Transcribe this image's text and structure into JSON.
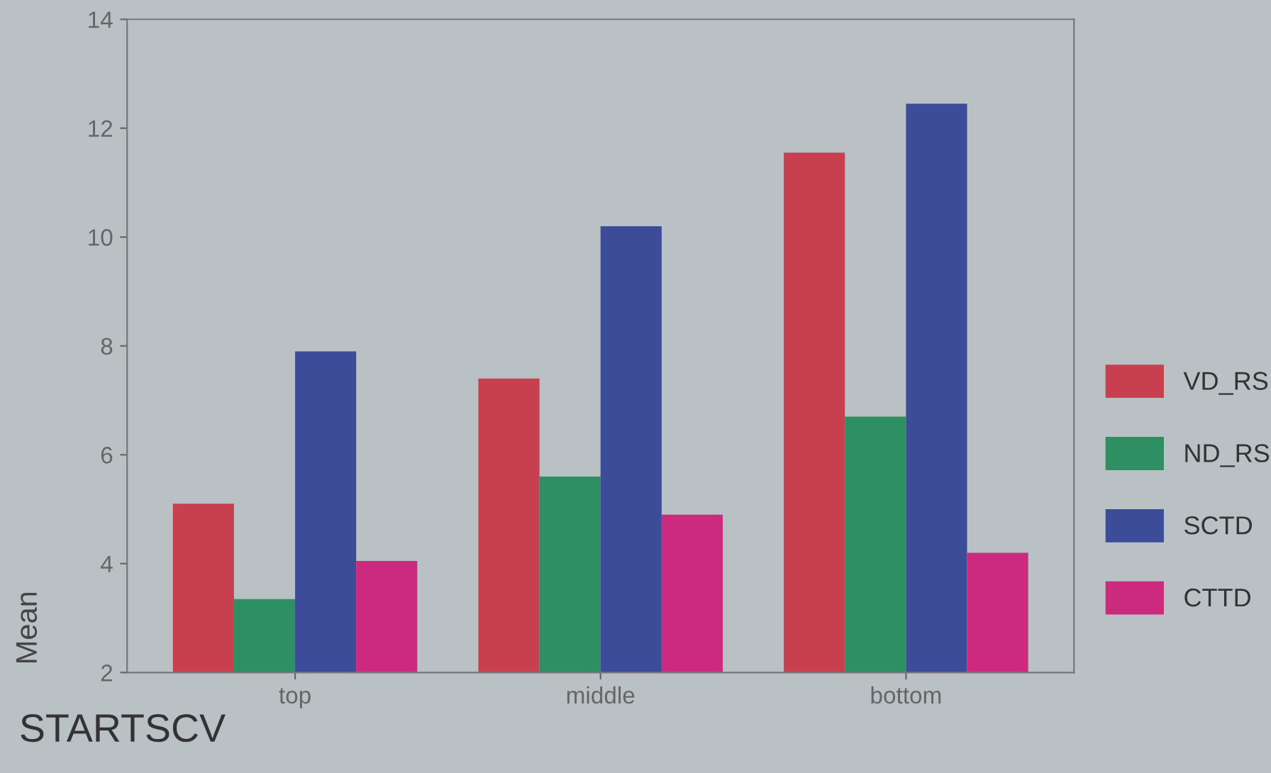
{
  "chart_data": {
    "type": "bar",
    "xlabel": "STARTSCV",
    "ylabel": "Mean",
    "categories": [
      "top",
      "middle",
      "bottom"
    ],
    "series": [
      {
        "name": "VD_RS",
        "color": "#c8404f",
        "values": [
          5.1,
          7.4,
          11.55
        ]
      },
      {
        "name": "ND_RS",
        "color": "#2e8f62",
        "values": [
          3.35,
          5.6,
          6.7
        ]
      },
      {
        "name": "SCTD",
        "color": "#3d4c98",
        "values": [
          7.9,
          10.2,
          12.45
        ]
      },
      {
        "name": "CTTD",
        "color": "#cc2a7e",
        "values": [
          4.05,
          4.9,
          4.2
        ]
      }
    ],
    "ylim": [
      2,
      14
    ],
    "yticks": [
      2,
      4,
      6,
      8,
      10,
      12,
      14
    ],
    "grid": false,
    "legend": "right"
  }
}
